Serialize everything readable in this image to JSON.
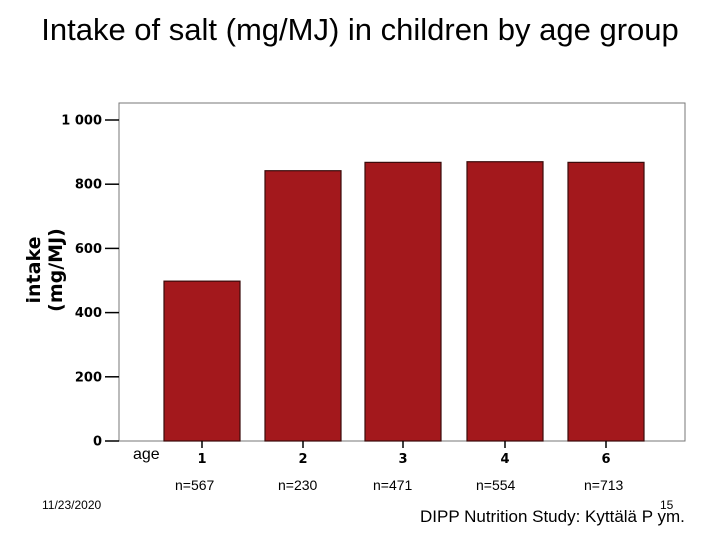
{
  "title": "Intake of salt (mg/MJ) in children by age group",
  "date": "11/23/2020",
  "slide_number": "15",
  "footer": "DIPP Nutrition Study: Kyttälä P ym.",
  "colors": {
    "bar": "#A3181C",
    "bar_stroke": "#3a0a0a",
    "axis": "#000000"
  },
  "chart_data": {
    "type": "bar",
    "xlabel": "age",
    "ylabel": "intake (mg/MJ)",
    "categories": [
      "1",
      "2",
      "3",
      "4",
      "6"
    ],
    "values": [
      498,
      842,
      868,
      870,
      868
    ],
    "sample_sizes": [
      "n=567",
      "n=230",
      "n=471",
      "n=554",
      "n=713"
    ],
    "yticks": [
      "0",
      "200",
      "400",
      "600",
      "800",
      "1 000"
    ],
    "ytick_values": [
      0,
      200,
      400,
      600,
      800,
      1000
    ],
    "ylim": [
      0,
      1000
    ],
    "grid": false
  }
}
